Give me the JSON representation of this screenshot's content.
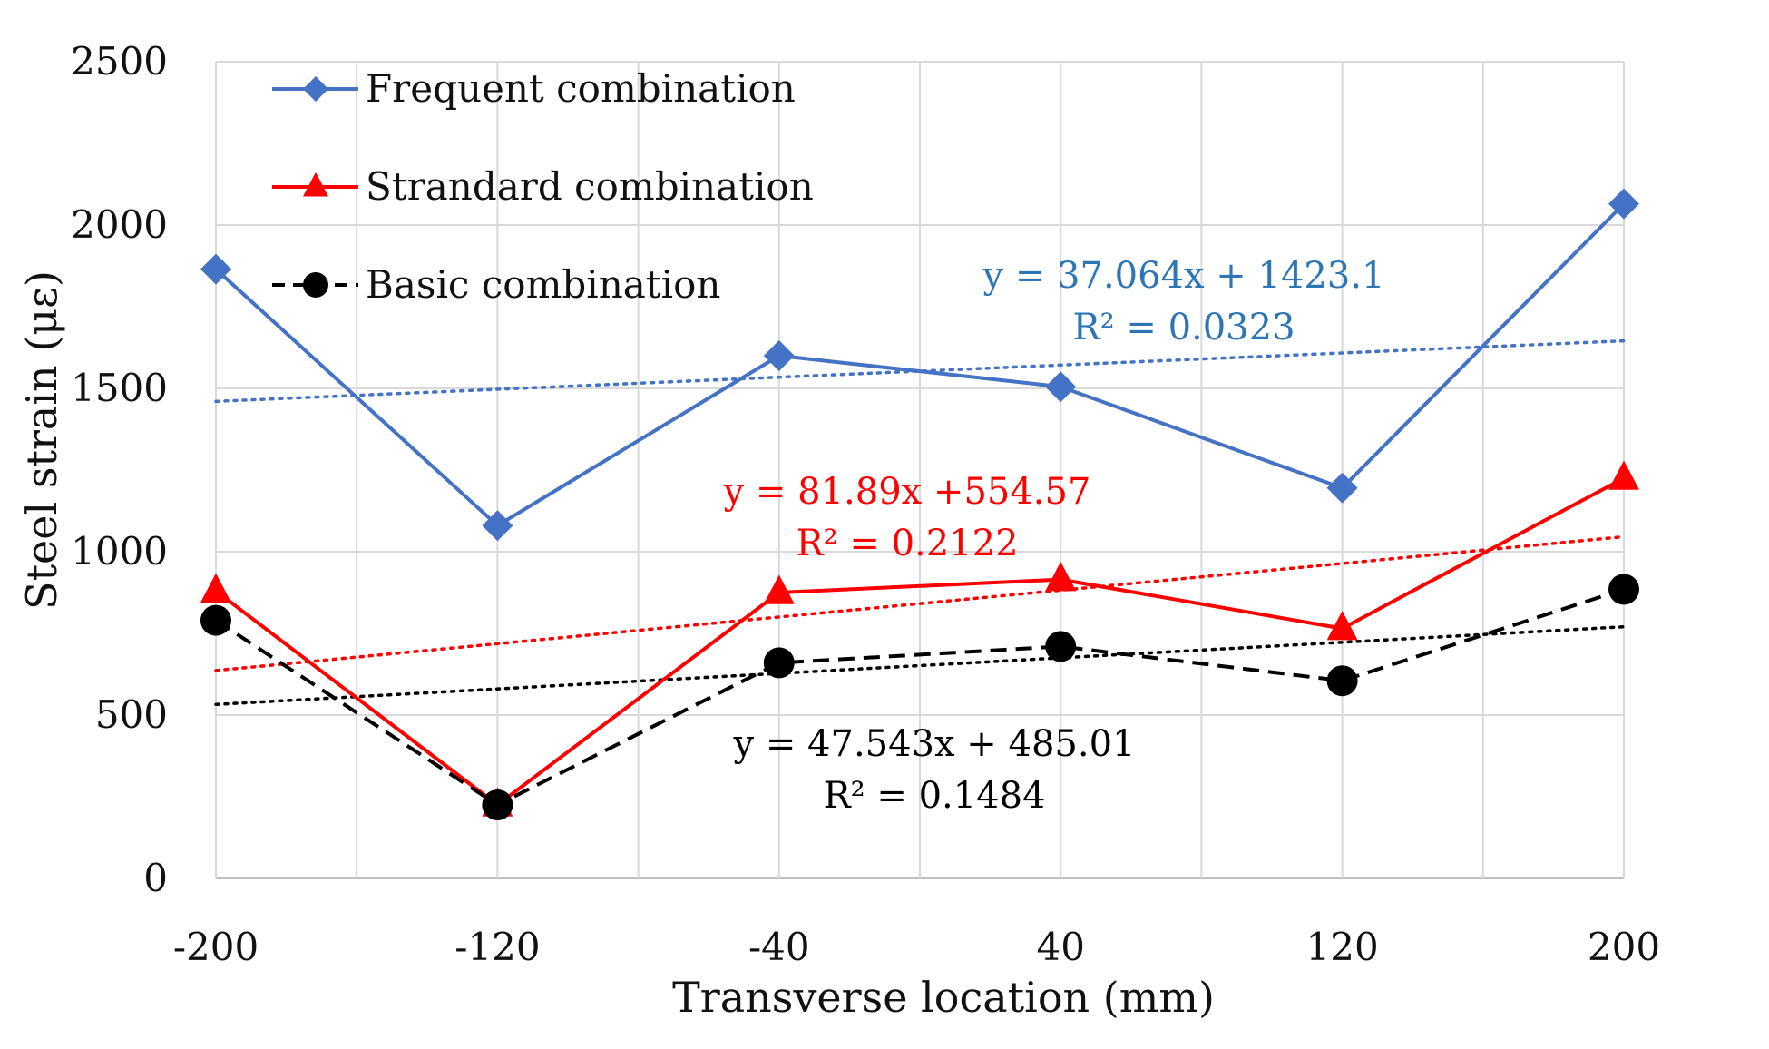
{
  "chart_data": {
    "type": "line",
    "xlabel": "Transverse location (mm)",
    "ylabel": "Steel strain (με)",
    "x": [
      -200,
      -120,
      -40,
      40,
      120,
      200
    ],
    "x_tick_labels": [
      "-200",
      "-120",
      "-40",
      "40",
      "120",
      "200"
    ],
    "ylim": [
      0,
      2500
    ],
    "y_ticks": [
      0,
      500,
      1000,
      1500,
      2000,
      2500
    ],
    "y_tick_labels": [
      "0",
      "500",
      "1000",
      "1500",
      "2000",
      "2500"
    ],
    "grid": true,
    "legend_position": "top-left",
    "series": [
      {
        "name": "Frequent combination",
        "values": [
          1865,
          1080,
          1600,
          1505,
          1195,
          2065
        ],
        "color": "#4472C4",
        "marker": "diamond",
        "line_style": "solid",
        "trend": {
          "equation": "y = 37.064x + 1423.1",
          "r2": "R² = 0.0323",
          "slope": 37.064,
          "intercept": 1423.1
        }
      },
      {
        "name": "Strandard combination",
        "values": [
          880,
          225,
          875,
          915,
          765,
          1225
        ],
        "color": "#FF0000",
        "marker": "triangle",
        "line_style": "solid",
        "trend": {
          "equation": "y = 81.89x +554.57",
          "r2": "R² = 0.2122",
          "slope": 81.89,
          "intercept": 554.57
        }
      },
      {
        "name": "Basic combination",
        "values": [
          790,
          225,
          660,
          710,
          605,
          885
        ],
        "color": "#000000",
        "marker": "circle",
        "line_style": "dashed",
        "trend": {
          "equation": "y = 47.543x + 485.01",
          "r2": "R² = 0.1484",
          "slope": 47.543,
          "intercept": 485.01
        }
      }
    ],
    "trend_label_colors": [
      "#2E75B6",
      "#FF0000",
      "#000000"
    ]
  }
}
